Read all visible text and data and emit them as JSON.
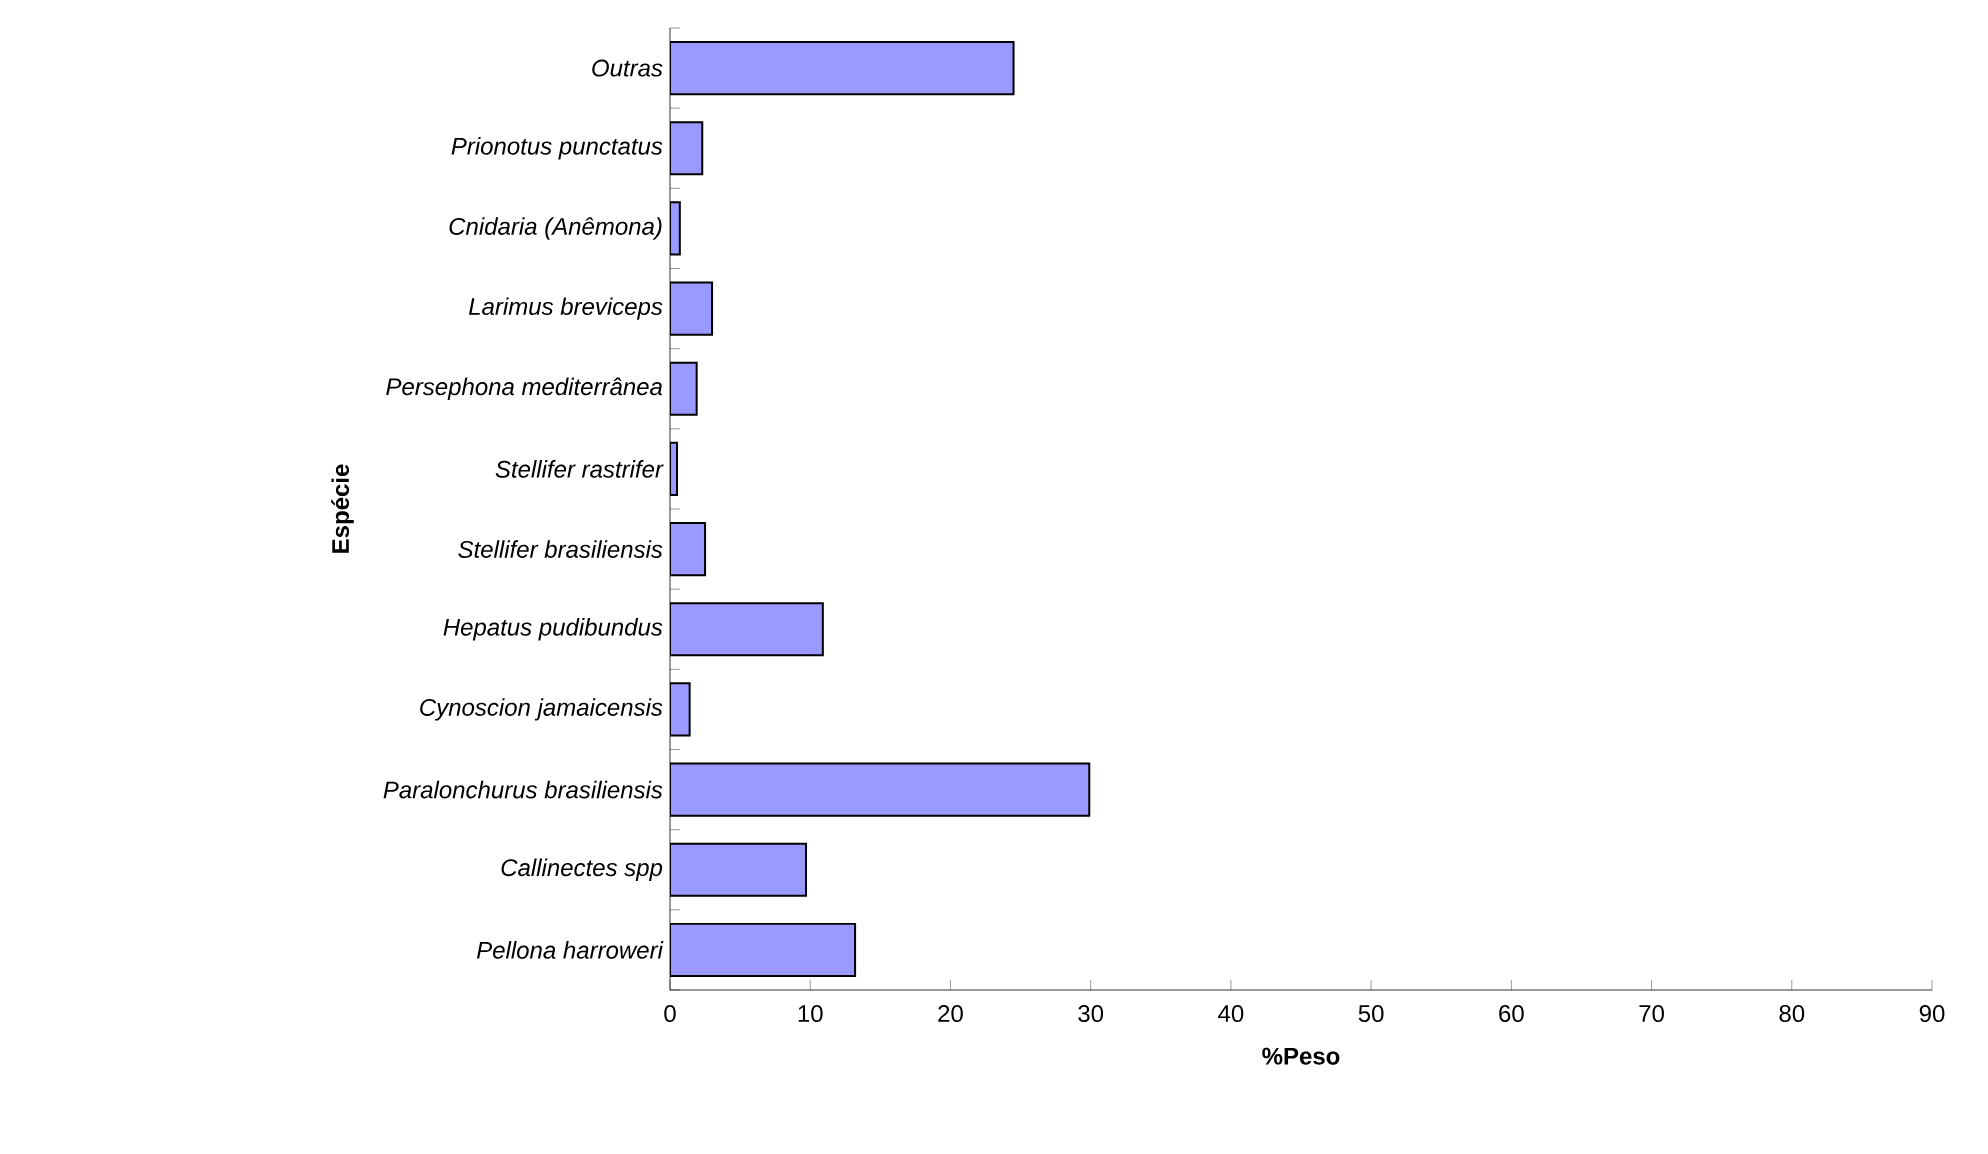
{
  "chart_data": {
    "type": "bar",
    "orientation": "horizontal",
    "xlabel": "%Peso",
    "ylabel": "Espécie",
    "categories": [
      "Outras",
      "Prionotus punctatus",
      "Cnidaria (Anêmona)",
      "Larimus breviceps",
      "Persephona mediterrânea",
      "Stellifer rastrifer",
      "Stellifer brasiliensis",
      "Hepatus pudibundus",
      "Cynoscion jamaicensis",
      "Paralonchurus brasiliensis",
      "Callinectes spp",
      "Pellona harroweri"
    ],
    "values": [
      24.5,
      2.3,
      0.7,
      3.0,
      1.9,
      0.5,
      2.5,
      10.9,
      1.4,
      29.9,
      9.7,
      13.2
    ],
    "color": "#9999ff",
    "xlim": [
      0,
      90
    ],
    "xticks": [
      0,
      10,
      20,
      30,
      40,
      50,
      60,
      70,
      80,
      90
    ],
    "grid": false
  }
}
